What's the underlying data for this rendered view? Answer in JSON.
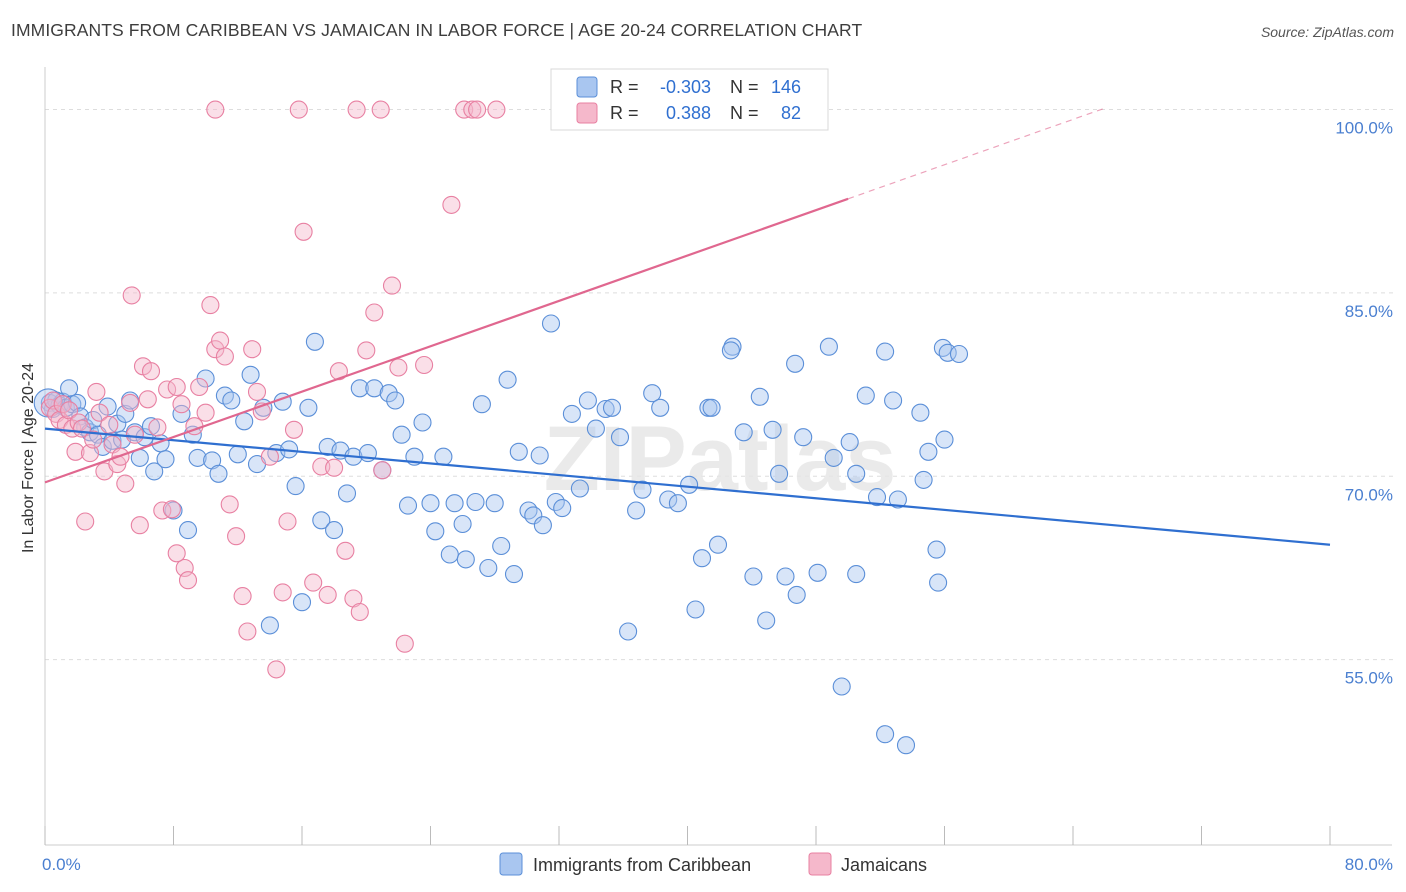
{
  "title": "IMMIGRANTS FROM CARIBBEAN VS JAMAICAN IN LABOR FORCE | AGE 20-24 CORRELATION CHART",
  "source": "Source: ZipAtlas.com",
  "watermark": "ZIPatlas",
  "colors": {
    "blue_fill": "#a9c6f0",
    "blue_stroke": "#5b8fd8",
    "blue_line": "#2f6fd0",
    "pink_fill": "#f5b8cb",
    "pink_stroke": "#e880a2",
    "pink_line": "#e0678f",
    "tick_text": "#4a7fd0",
    "grid": "#dddddd"
  },
  "legend": {
    "rows": [
      {
        "r_label": "R =",
        "r_value": "-0.303",
        "n_label": "N =",
        "n_value": "146"
      },
      {
        "r_label": "R =",
        "r_value": "0.388",
        "n_label": "N =",
        "n_value": "82"
      }
    ]
  },
  "bottom_legend": {
    "items": [
      "Immigrants from Caribbean",
      "Jamaicans"
    ]
  },
  "chart_data": {
    "type": "scatter",
    "xlabel": "",
    "ylabel": "In Labor Force | Age 20-24",
    "xlim": [
      0,
      80
    ],
    "ylim": [
      40,
      102.5
    ],
    "x_tick_labels": [
      "0.0%",
      "80.0%"
    ],
    "y_ticks": [
      55,
      70,
      85,
      100
    ],
    "y_tick_labels": [
      "55.0%",
      "70.0%",
      "85.0%",
      "100.0%"
    ],
    "grid": "horizontal dashed",
    "legend_position": "top-center",
    "series": [
      {
        "name": "Immigrants from Caribbean",
        "trend": {
          "x0": 0,
          "y0": 73.9,
          "x1": 80,
          "y1": 64.4
        },
        "points": [
          [
            0.3,
            76.0
          ],
          [
            0.5,
            75.5
          ],
          [
            0.7,
            76.2
          ],
          [
            0.9,
            75.8
          ],
          [
            1.1,
            76.1
          ],
          [
            1.3,
            75.6
          ],
          [
            1.5,
            77.2
          ],
          [
            1.7,
            75.9
          ],
          [
            2.0,
            76.0
          ],
          [
            2.2,
            74.9
          ],
          [
            2.5,
            74.0
          ],
          [
            2.8,
            73.6
          ],
          [
            3.0,
            74.6
          ],
          [
            3.3,
            73.4
          ],
          [
            3.6,
            72.4
          ],
          [
            3.9,
            75.7
          ],
          [
            4.2,
            72.9
          ],
          [
            4.5,
            74.3
          ],
          [
            4.8,
            73.0
          ],
          [
            5.0,
            75.1
          ],
          [
            5.3,
            76.2
          ],
          [
            5.6,
            73.6
          ],
          [
            5.9,
            71.5
          ],
          [
            6.2,
            73.2
          ],
          [
            6.6,
            74.1
          ],
          [
            6.8,
            70.4
          ],
          [
            7.2,
            72.7
          ],
          [
            7.5,
            71.4
          ],
          [
            8.0,
            67.2
          ],
          [
            8.5,
            75.1
          ],
          [
            8.9,
            65.6
          ],
          [
            9.2,
            73.4
          ],
          [
            9.5,
            71.5
          ],
          [
            10.0,
            78.0
          ],
          [
            10.4,
            71.3
          ],
          [
            10.8,
            70.2
          ],
          [
            11.2,
            76.6
          ],
          [
            11.6,
            76.2
          ],
          [
            12.0,
            71.8
          ],
          [
            12.4,
            74.5
          ],
          [
            12.8,
            78.3
          ],
          [
            13.2,
            71.0
          ],
          [
            13.6,
            75.6
          ],
          [
            14.0,
            57.8
          ],
          [
            14.4,
            71.9
          ],
          [
            14.8,
            76.1
          ],
          [
            15.2,
            72.2
          ],
          [
            15.6,
            69.2
          ],
          [
            16.0,
            59.7
          ],
          [
            16.4,
            75.6
          ],
          [
            16.8,
            81.0
          ],
          [
            17.2,
            66.4
          ],
          [
            17.6,
            72.4
          ],
          [
            18.0,
            65.6
          ],
          [
            18.4,
            72.1
          ],
          [
            18.8,
            68.6
          ],
          [
            19.2,
            71.6
          ],
          [
            19.6,
            77.2
          ],
          [
            20.1,
            71.9
          ],
          [
            20.5,
            77.2
          ],
          [
            21.0,
            70.5
          ],
          [
            21.4,
            76.8
          ],
          [
            21.8,
            76.2
          ],
          [
            22.2,
            73.4
          ],
          [
            22.6,
            67.6
          ],
          [
            23.0,
            71.6
          ],
          [
            23.5,
            74.4
          ],
          [
            24.0,
            67.8
          ],
          [
            24.3,
            65.5
          ],
          [
            24.8,
            71.6
          ],
          [
            25.2,
            63.6
          ],
          [
            25.5,
            67.8
          ],
          [
            26.0,
            66.1
          ],
          [
            26.2,
            63.2
          ],
          [
            26.8,
            67.9
          ],
          [
            27.2,
            75.9
          ],
          [
            27.6,
            62.5
          ],
          [
            28.0,
            67.8
          ],
          [
            28.4,
            64.3
          ],
          [
            28.8,
            77.9
          ],
          [
            29.2,
            62.0
          ],
          [
            29.5,
            72.0
          ],
          [
            30.1,
            67.2
          ],
          [
            30.4,
            66.8
          ],
          [
            30.8,
            71.7
          ],
          [
            31.0,
            66.0
          ],
          [
            31.5,
            82.5
          ],
          [
            31.8,
            67.9
          ],
          [
            32.2,
            67.4
          ],
          [
            32.8,
            75.1
          ],
          [
            33.3,
            69.0
          ],
          [
            33.8,
            76.2
          ],
          [
            34.3,
            73.9
          ],
          [
            34.9,
            75.5
          ],
          [
            35.3,
            75.6
          ],
          [
            35.8,
            73.2
          ],
          [
            36.3,
            57.3
          ],
          [
            36.8,
            67.2
          ],
          [
            37.2,
            68.9
          ],
          [
            37.8,
            76.8
          ],
          [
            38.3,
            75.6
          ],
          [
            38.8,
            68.1
          ],
          [
            39.4,
            67.8
          ],
          [
            40.1,
            69.3
          ],
          [
            40.5,
            59.1
          ],
          [
            40.9,
            63.3
          ],
          [
            41.3,
            75.6
          ],
          [
            41.9,
            64.4
          ],
          [
            42.8,
            80.6
          ],
          [
            43.5,
            73.6
          ],
          [
            44.1,
            61.8
          ],
          [
            44.9,
            58.2
          ],
          [
            45.3,
            73.8
          ],
          [
            45.7,
            70.2
          ],
          [
            46.1,
            61.8
          ],
          [
            46.8,
            60.3
          ],
          [
            47.2,
            73.2
          ],
          [
            48.1,
            62.1
          ],
          [
            49.1,
            71.5
          ],
          [
            49.6,
            52.8
          ],
          [
            50.1,
            72.8
          ],
          [
            50.5,
            62.0
          ],
          [
            51.1,
            76.6
          ],
          [
            51.8,
            68.3
          ],
          [
            52.3,
            48.9
          ],
          [
            53.1,
            68.1
          ],
          [
            54.7,
            69.7
          ],
          [
            55.6,
            61.3
          ],
          [
            55.9,
            80.5
          ],
          [
            56.2,
            80.1
          ],
          [
            56.9,
            80.0
          ],
          [
            55.0,
            72.0
          ],
          [
            52.8,
            76.2
          ],
          [
            56.0,
            73.0
          ],
          [
            55.5,
            64.0
          ],
          [
            54.5,
            75.2
          ],
          [
            44.5,
            76.5
          ],
          [
            41.5,
            75.6
          ],
          [
            46.7,
            79.2
          ],
          [
            50.5,
            70.2
          ],
          [
            52.3,
            80.2
          ],
          [
            48.8,
            80.6
          ],
          [
            53.6,
            48.0
          ],
          [
            42.7,
            80.3
          ]
        ]
      },
      {
        "name": "Jamaicans",
        "trend": {
          "x0": 0,
          "y0": 69.5,
          "x1": 50,
          "y1": 92.7
        },
        "points": [
          [
            0.3,
            75.6
          ],
          [
            0.5,
            76.2
          ],
          [
            0.7,
            75.1
          ],
          [
            0.9,
            74.6
          ],
          [
            1.1,
            75.9
          ],
          [
            1.3,
            74.2
          ],
          [
            1.5,
            75.4
          ],
          [
            1.7,
            73.9
          ],
          [
            1.9,
            72.0
          ],
          [
            2.1,
            74.4
          ],
          [
            2.3,
            73.9
          ],
          [
            2.5,
            66.3
          ],
          [
            2.8,
            71.9
          ],
          [
            3.0,
            73.0
          ],
          [
            3.2,
            76.9
          ],
          [
            3.4,
            75.2
          ],
          [
            3.7,
            70.4
          ],
          [
            4.0,
            74.2
          ],
          [
            4.2,
            72.6
          ],
          [
            4.5,
            71.0
          ],
          [
            4.7,
            71.6
          ],
          [
            5.0,
            69.4
          ],
          [
            5.3,
            76.0
          ],
          [
            5.6,
            73.4
          ],
          [
            5.9,
            66.0
          ],
          [
            6.1,
            79.0
          ],
          [
            6.4,
            76.3
          ],
          [
            6.6,
            78.6
          ],
          [
            7.0,
            74.0
          ],
          [
            7.3,
            67.2
          ],
          [
            7.6,
            77.1
          ],
          [
            7.9,
            67.3
          ],
          [
            8.2,
            77.3
          ],
          [
            8.5,
            75.9
          ],
          [
            8.7,
            62.5
          ],
          [
            8.9,
            61.5
          ],
          [
            9.3,
            74.1
          ],
          [
            9.6,
            77.3
          ],
          [
            10.0,
            75.2
          ],
          [
            10.3,
            84.0
          ],
          [
            10.6,
            80.4
          ],
          [
            10.9,
            81.1
          ],
          [
            11.2,
            79.8
          ],
          [
            11.5,
            67.7
          ],
          [
            11.9,
            65.1
          ],
          [
            12.3,
            60.2
          ],
          [
            12.6,
            57.3
          ],
          [
            12.9,
            80.4
          ],
          [
            13.2,
            76.9
          ],
          [
            13.5,
            75.3
          ],
          [
            14.0,
            71.6
          ],
          [
            14.4,
            54.2
          ],
          [
            14.8,
            60.5
          ],
          [
            15.1,
            66.3
          ],
          [
            15.5,
            73.8
          ],
          [
            15.8,
            100.0
          ],
          [
            16.1,
            90.0
          ],
          [
            16.7,
            61.3
          ],
          [
            17.2,
            70.8
          ],
          [
            17.6,
            60.3
          ],
          [
            18.0,
            70.7
          ],
          [
            18.3,
            78.6
          ],
          [
            18.7,
            63.9
          ],
          [
            19.2,
            60.0
          ],
          [
            19.6,
            58.9
          ],
          [
            20.0,
            80.3
          ],
          [
            20.5,
            83.4
          ],
          [
            21.0,
            70.5
          ],
          [
            21.6,
            85.6
          ],
          [
            22.0,
            78.9
          ],
          [
            22.4,
            56.3
          ],
          [
            25.3,
            92.2
          ],
          [
            26.1,
            100.0
          ],
          [
            26.6,
            100.0
          ],
          [
            26.9,
            100.0
          ],
          [
            28.1,
            100.0
          ],
          [
            10.6,
            100.0
          ],
          [
            5.4,
            84.8
          ],
          [
            8.2,
            63.7
          ],
          [
            20.9,
            100.0
          ],
          [
            19.4,
            100.0
          ],
          [
            23.6,
            79.1
          ]
        ]
      }
    ]
  }
}
